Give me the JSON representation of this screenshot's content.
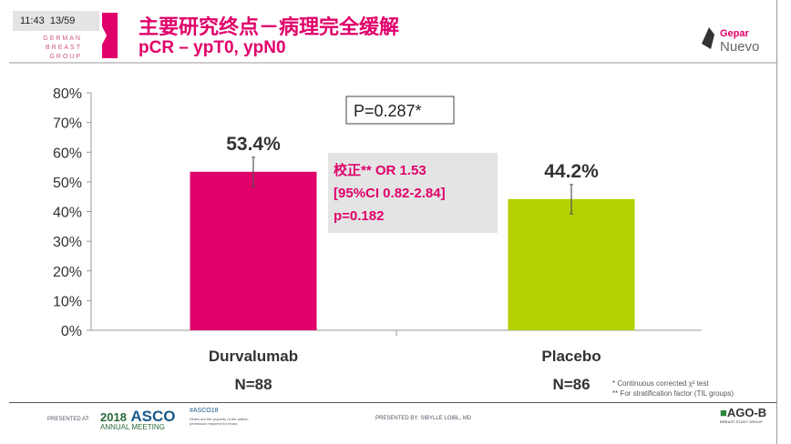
{
  "header": {
    "time": "11:43",
    "slide_counter": "13/59",
    "org_logo": [
      "GERMAN",
      "BREAST",
      "GROUP"
    ],
    "title": "主要研究终点－病理完全缓解",
    "subtitle": "pCR – ypT0, ypN0",
    "study_logo": "Gepar Nuevo"
  },
  "chart_data": {
    "type": "bar",
    "categories": [
      "Durvalumab",
      "Placebo"
    ],
    "values": [
      53.4,
      44.2
    ],
    "value_labels": [
      "53.4%",
      "44.2%"
    ],
    "n_labels": [
      "N=88",
      "N=86"
    ],
    "error_bars": [
      [
        48.4,
        58.3
      ],
      [
        39.2,
        49.1
      ]
    ],
    "colors": [
      "#e0006a",
      "#b5d000"
    ],
    "ylim": [
      0,
      80
    ],
    "yticks": [
      "0%",
      "10%",
      "20%",
      "30%",
      "40%",
      "50%",
      "60%",
      "70%",
      "80%"
    ],
    "grid": false,
    "annotations": {
      "p_value": "P=0.287*",
      "adjusted": [
        "校正** OR 1.53",
        "[95%CI 0.82-2.84]",
        "p=0.182"
      ]
    }
  },
  "notes": [
    "* Continuous corrected χ² test",
    "** For  stratification factor (TIL groups)"
  ],
  "footer": {
    "presented_at": "PRESENTED AT:",
    "asco_year": "2018",
    "asco": "ASCO",
    "asco_meeting": "ANNUAL MEETING",
    "hashtag": "#ASCO18",
    "disclaimer": "Slides are the property of the author, permission required for reuse.",
    "presenter": "PRESENTED BY:  SIBYLLE LOIBL, MD",
    "ago": "AGO-B",
    "ago_sub": "BREAST STUDY GROUP"
  }
}
